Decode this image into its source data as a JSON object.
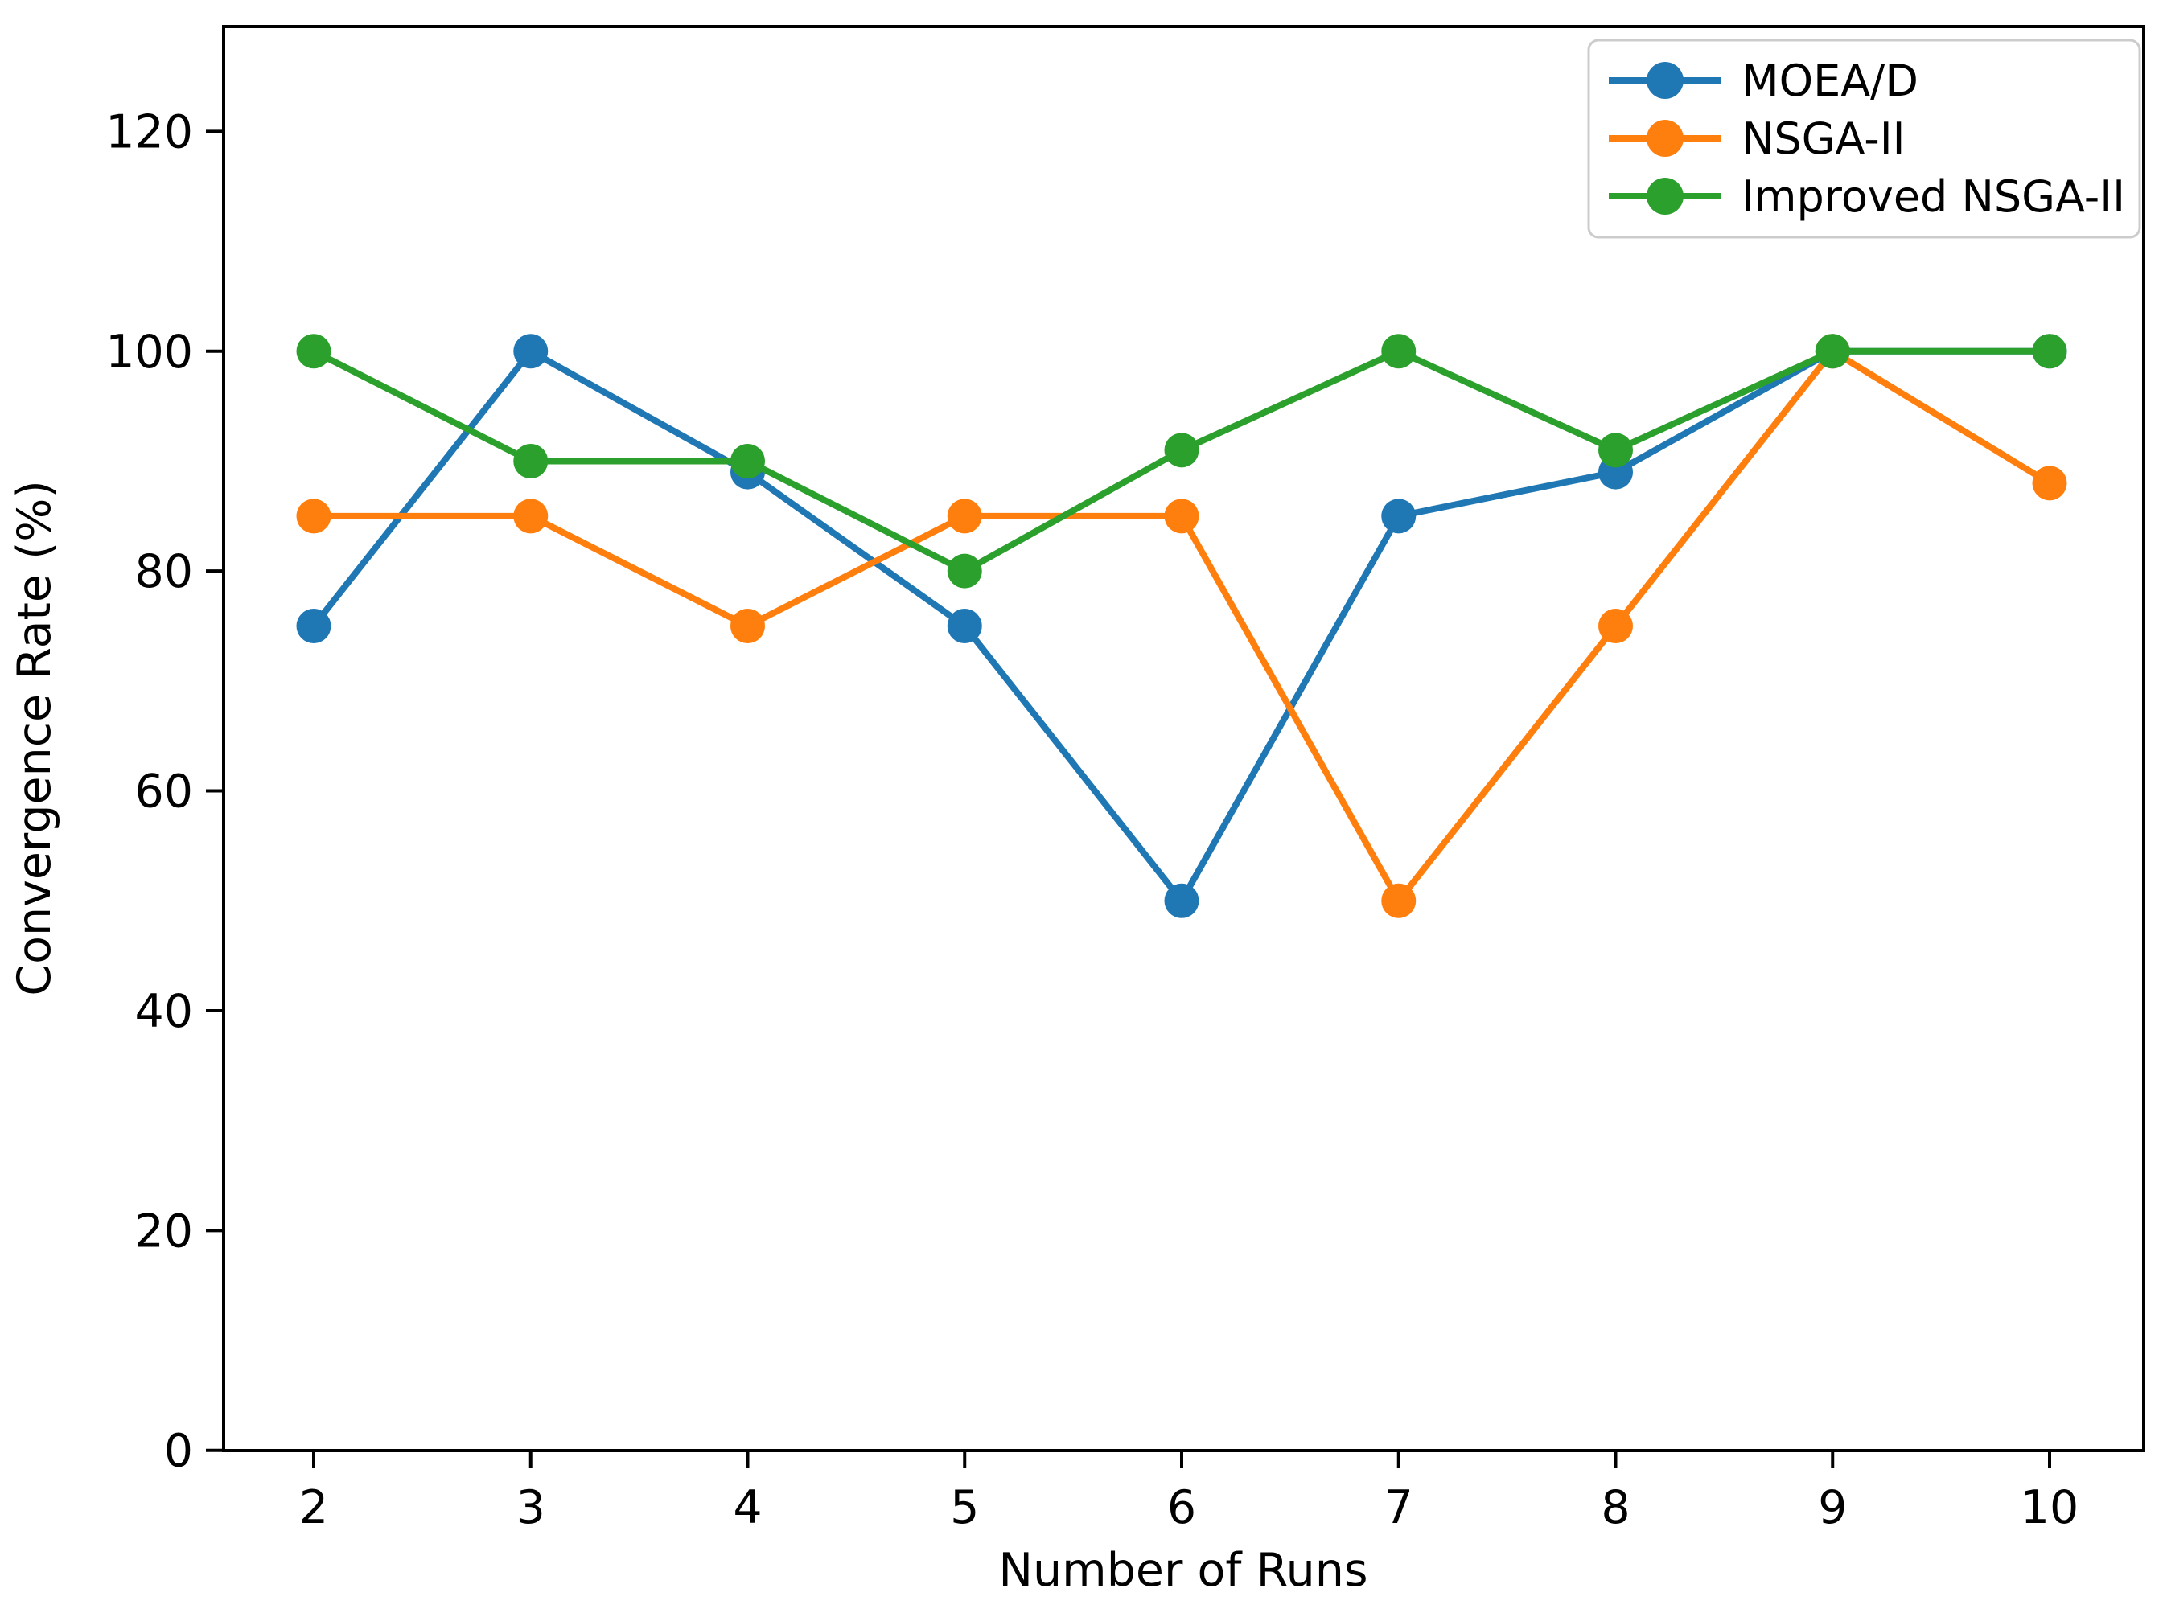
{
  "chart_data": {
    "type": "line",
    "title": "",
    "xlabel": "Number of Runs",
    "ylabel": "Convergence Rate (%)",
    "x": [
      2,
      3,
      4,
      5,
      6,
      7,
      8,
      9,
      10
    ],
    "series": [
      {
        "name": "MOEA/D",
        "color": "#1f77b4",
        "values": [
          75,
          100,
          89,
          75,
          50,
          85,
          89,
          100,
          100
        ]
      },
      {
        "name": "NSGA-II",
        "color": "#ff7f0e",
        "values": [
          85,
          85,
          75,
          85,
          85,
          50,
          75,
          100,
          88
        ]
      },
      {
        "name": "Improved NSGA-II",
        "color": "#2ca02c",
        "values": [
          100,
          90,
          90,
          80,
          91,
          100,
          91,
          100,
          100
        ]
      }
    ],
    "xticks": [
      2,
      3,
      4,
      5,
      6,
      7,
      8,
      9,
      10
    ],
    "yticks": [
      0,
      20,
      40,
      60,
      80,
      100,
      120
    ],
    "xlim": [
      1.58,
      10.43
    ],
    "ylim": [
      0,
      130
    ],
    "grid": false,
    "legend_position": "upper right",
    "marker": "circle",
    "line_style": "solid",
    "background_color": "#ffffff",
    "axis_color": "#000000",
    "legend_border_color": "#cccccc"
  }
}
